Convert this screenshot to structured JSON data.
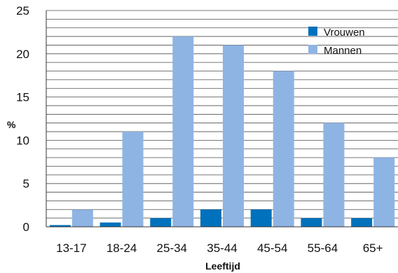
{
  "chart_data": {
    "type": "bar",
    "xlabel": "Leeftijd",
    "ylabel": "%",
    "ylim": [
      0,
      25
    ],
    "yticks": [
      0,
      5,
      10,
      15,
      20,
      25
    ],
    "grid_minor_step": 1,
    "grid": true,
    "legend_position": "top-right",
    "categories": [
      "13-17",
      "18-24",
      "25-34",
      "35-44",
      "45-54",
      "55-64",
      "65+"
    ],
    "series": [
      {
        "name": "Vrouwen",
        "color": "#0071bc",
        "values": [
          0.2,
          0.5,
          1,
          2,
          2,
          1,
          1
        ]
      },
      {
        "name": "Mannen",
        "color": "#8eb4e3",
        "values": [
          2,
          11,
          22,
          21,
          18,
          12,
          8
        ]
      }
    ]
  }
}
